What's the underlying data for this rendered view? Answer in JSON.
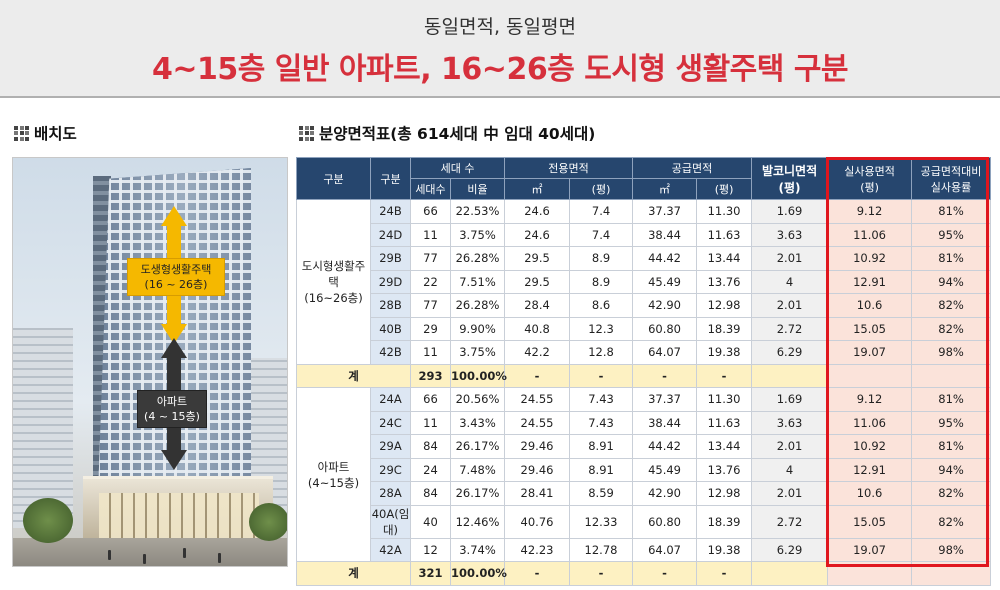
{
  "header": {
    "subtitle": "동일면적, 동일평면",
    "title": "4~15층 일반 아파트, 16~26층 도시형 생활주택 구분"
  },
  "left_section": {
    "title": "배치도",
    "upper_label_line1": "도생형생활주택",
    "upper_label_line2": "(16 ~ 26층)",
    "lower_label_line1": "아파트",
    "lower_label_line2": "(4 ~ 15층)"
  },
  "right_section": {
    "title": "분양면적표(총 614세대 中 임대 40세대)"
  },
  "table": {
    "headers": {
      "group": "구분",
      "type": "구분",
      "households": "세대 수",
      "hh_count": "세대수",
      "hh_ratio": "비율",
      "exclusive": "전용면적",
      "supply": "공급면적",
      "unit_m2": "㎡",
      "unit_py": "(평)",
      "balcony_l1": "발코니면적",
      "balcony_l2": "(평)",
      "actual_l1": "실사용면적",
      "actual_l2": "(평)",
      "ratio_l1": "공급면적대비",
      "ratio_l2": "실사용률"
    },
    "group1": {
      "name_line1": "도시형생활주택",
      "name_line2": "(16~26층)",
      "rows": [
        [
          "24B",
          "66",
          "22.53%",
          "24.6",
          "7.4",
          "37.37",
          "11.30",
          "1.69",
          "9.12",
          "81%"
        ],
        [
          "24D",
          "11",
          "3.75%",
          "24.6",
          "7.4",
          "38.44",
          "11.63",
          "3.63",
          "11.06",
          "95%"
        ],
        [
          "29B",
          "77",
          "26.28%",
          "29.5",
          "8.9",
          "44.42",
          "13.44",
          "2.01",
          "10.92",
          "81%"
        ],
        [
          "29D",
          "22",
          "7.51%",
          "29.5",
          "8.9",
          "45.49",
          "13.76",
          "4",
          "12.91",
          "94%"
        ],
        [
          "28B",
          "77",
          "26.28%",
          "28.4",
          "8.6",
          "42.90",
          "12.98",
          "2.01",
          "10.6",
          "82%"
        ],
        [
          "40B",
          "29",
          "9.90%",
          "40.8",
          "12.3",
          "60.80",
          "18.39",
          "2.72",
          "15.05",
          "82%"
        ],
        [
          "42B",
          "11",
          "3.75%",
          "42.2",
          "12.8",
          "64.07",
          "19.38",
          "6.29",
          "19.07",
          "98%"
        ]
      ],
      "total": [
        "계",
        "293",
        "100.00%",
        "-",
        "-",
        "-",
        "-",
        "",
        "",
        ""
      ]
    },
    "group2": {
      "name_line1": "아파트",
      "name_line2": "(4~15층)",
      "rows": [
        [
          "24A",
          "66",
          "20.56%",
          "24.55",
          "7.43",
          "37.37",
          "11.30",
          "1.69",
          "9.12",
          "81%"
        ],
        [
          "24C",
          "11",
          "3.43%",
          "24.55",
          "7.43",
          "38.44",
          "11.63",
          "3.63",
          "11.06",
          "95%"
        ],
        [
          "29A",
          "84",
          "26.17%",
          "29.46",
          "8.91",
          "44.42",
          "13.44",
          "2.01",
          "10.92",
          "81%"
        ],
        [
          "29C",
          "24",
          "7.48%",
          "29.46",
          "8.91",
          "45.49",
          "13.76",
          "4",
          "12.91",
          "94%"
        ],
        [
          "28A",
          "84",
          "26.17%",
          "28.41",
          "8.59",
          "42.90",
          "12.98",
          "2.01",
          "10.6",
          "82%"
        ],
        [
          "40A(임대)",
          "40",
          "12.46%",
          "40.76",
          "12.33",
          "60.80",
          "18.39",
          "2.72",
          "15.05",
          "82%"
        ],
        [
          "42A",
          "12",
          "3.74%",
          "42.23",
          "12.78",
          "64.07",
          "19.38",
          "6.29",
          "19.07",
          "98%"
        ]
      ],
      "total": [
        "계",
        "321",
        "100.00%",
        "-",
        "-",
        "-",
        "-",
        "",
        "",
        ""
      ]
    }
  },
  "colors": {
    "title_red": "#d6303c",
    "header_navy": "#26466e",
    "highlight_frame": "#e0161e",
    "label_yellow": "#f5b800"
  }
}
